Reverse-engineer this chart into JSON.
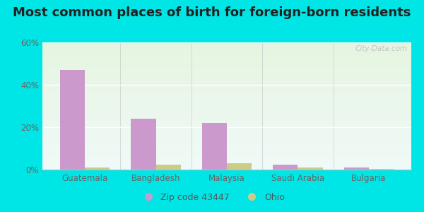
{
  "title": "Most common places of birth for foreign-born residents",
  "categories": [
    "Guatemala",
    "Bangladesh",
    "Malaysia",
    "Saudi Arabia",
    "Bulgaria"
  ],
  "zip_values": [
    47,
    24,
    22,
    2.5,
    1.0
  ],
  "ohio_values": [
    1.0,
    2.5,
    3.0,
    1.0,
    0.5
  ],
  "zip_color": "#cc99cc",
  "ohio_color": "#cccc88",
  "bar_width": 0.35,
  "ylim": [
    0,
    60
  ],
  "yticks": [
    0,
    20,
    40,
    60
  ],
  "ytick_labels": [
    "0%",
    "20%",
    "40%",
    "60%"
  ],
  "legend_zip_label": "Zip code 43447",
  "legend_ohio_label": "Ohio",
  "bg_outer": "#00e5e5",
  "bg_top": "#e6f5e0",
  "bg_bottom": "#f0faf8",
  "watermark": "City-Data.com",
  "title_fontsize": 13,
  "tick_fontsize": 8.5,
  "legend_fontsize": 9
}
